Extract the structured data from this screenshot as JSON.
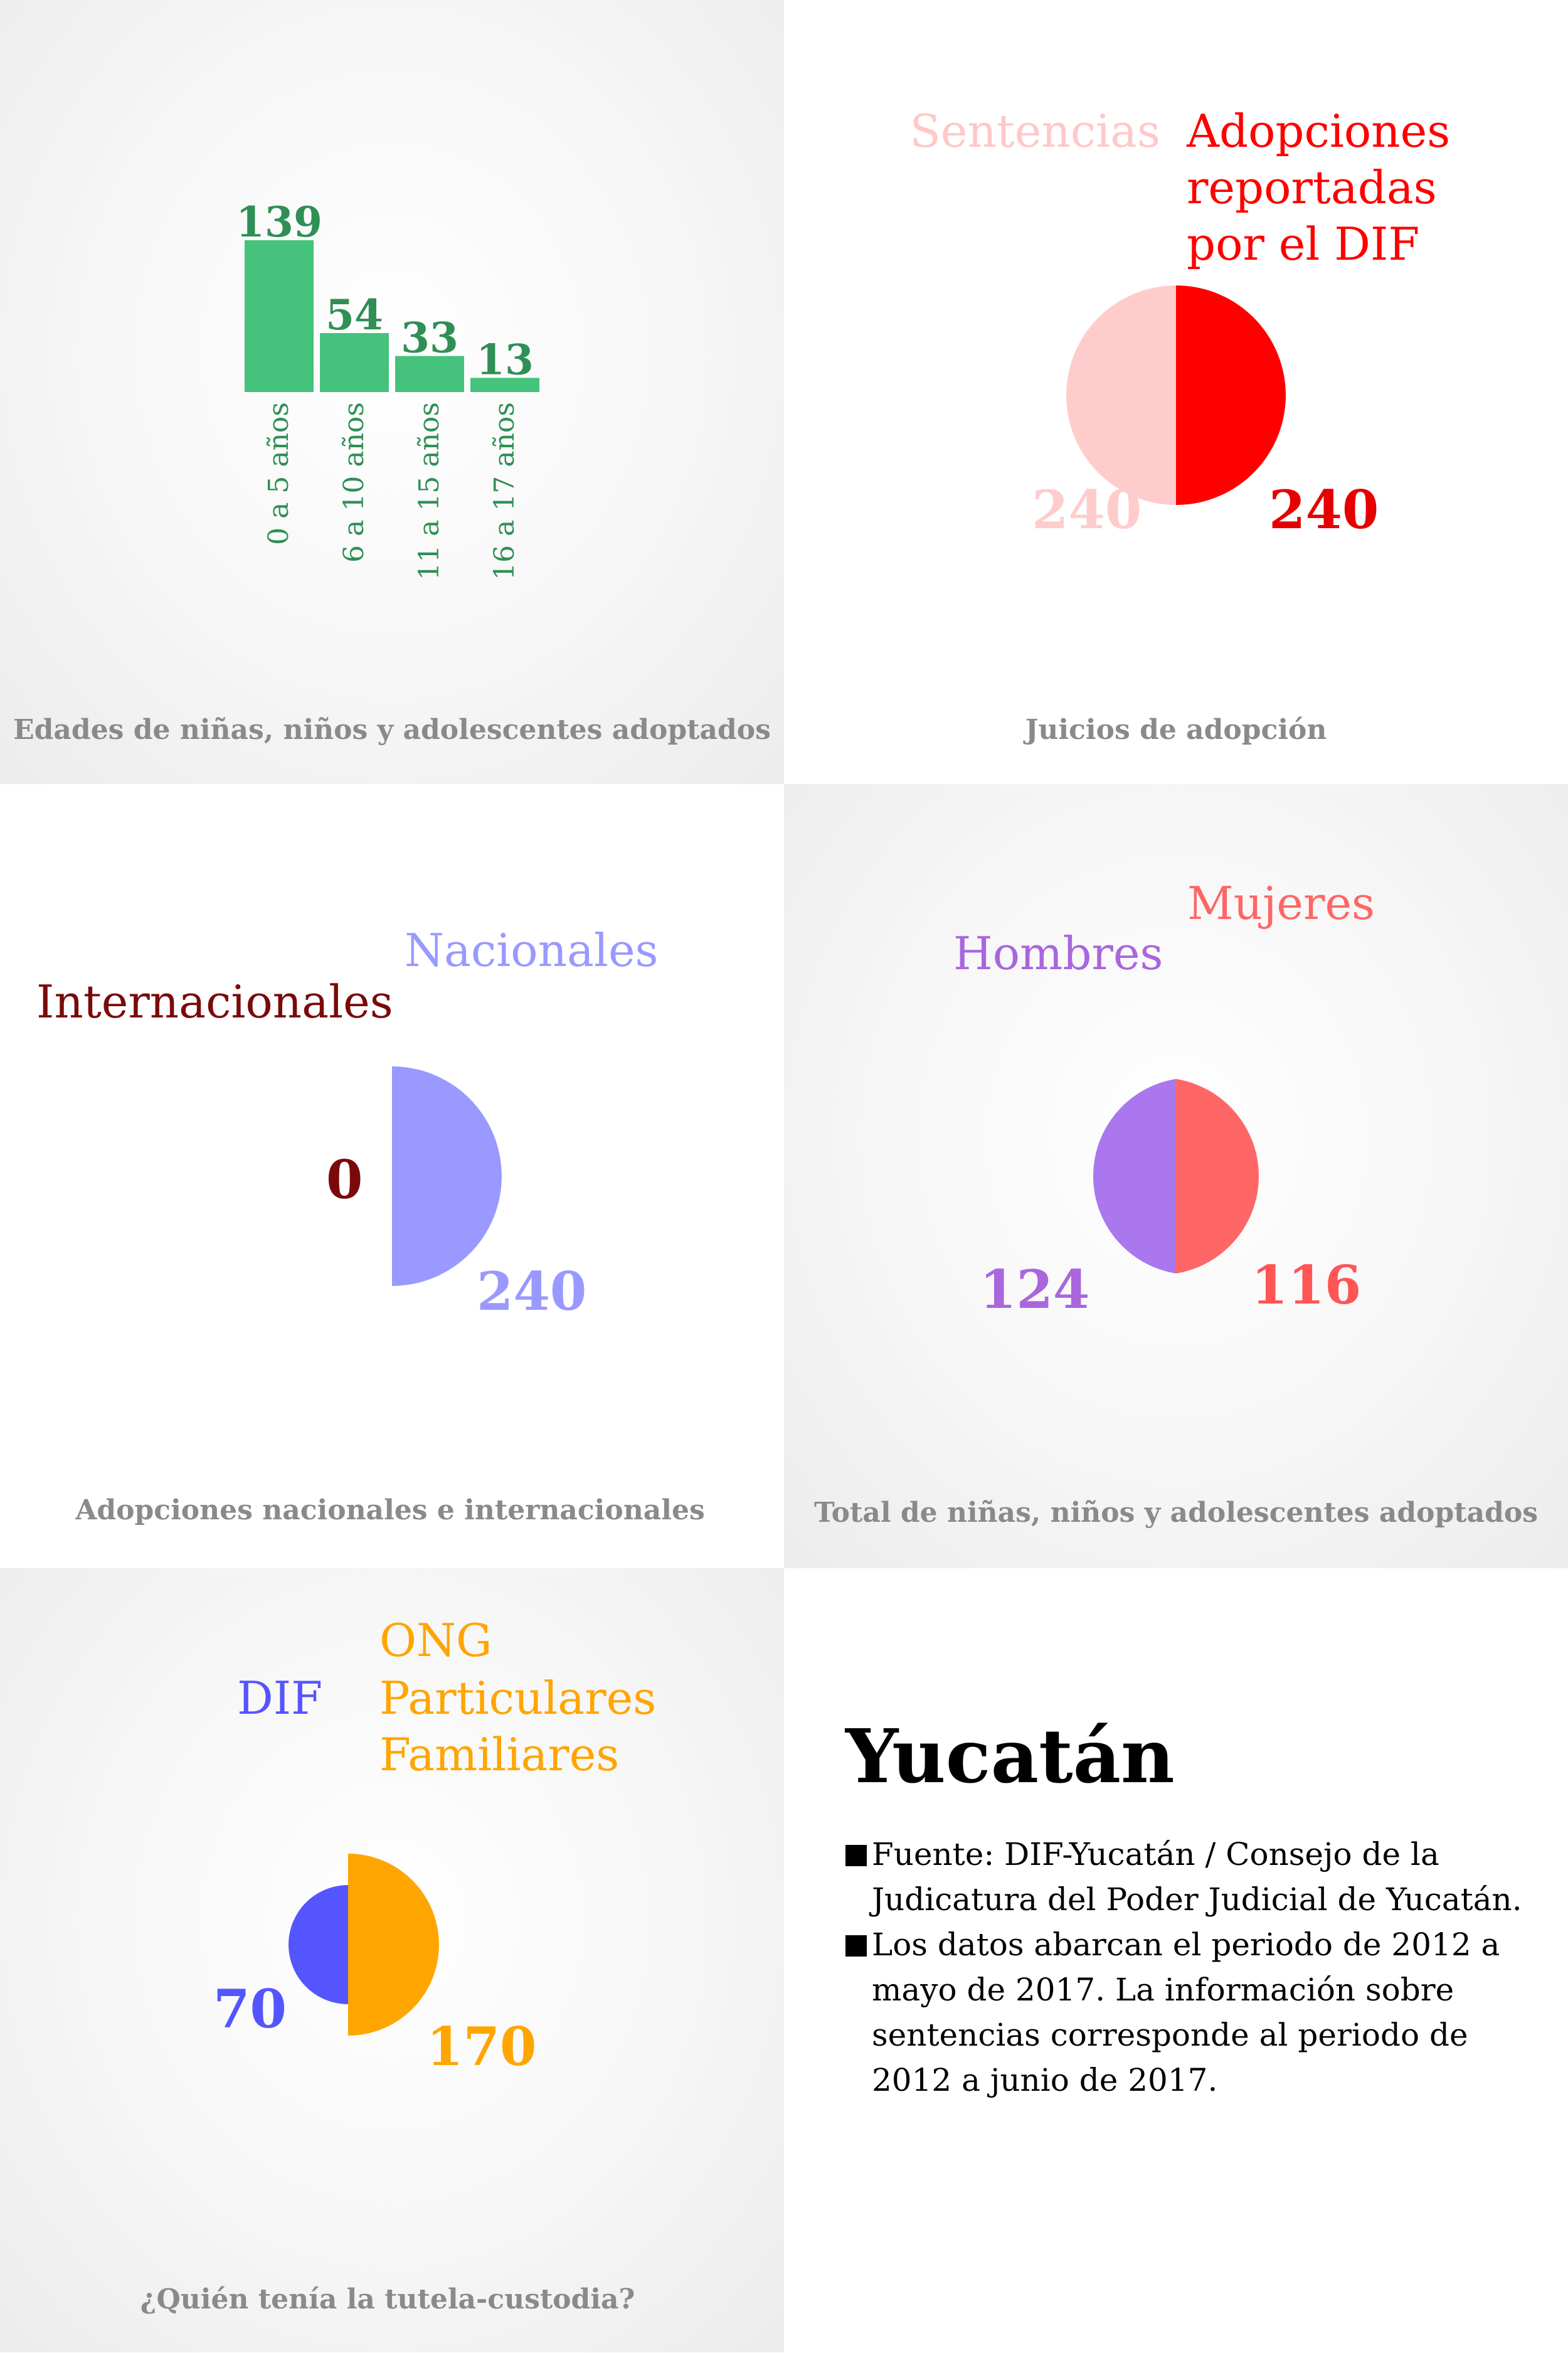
{
  "chart_data": [
    {
      "type": "bar",
      "title": "Edades de niñas, niños y adolescentes adoptados",
      "categories": [
        "0 a 5 años",
        "6 a 10 años",
        "11 a 15 años",
        "16 a 17 años"
      ],
      "values": [
        139,
        54,
        33,
        13
      ],
      "color": "#45c27b"
    },
    {
      "type": "pie",
      "title": "Juicios de adopción",
      "labels": [
        "Sentencias",
        "Adopciones reportadas por el DIF"
      ],
      "values": [
        240,
        240
      ],
      "colors": [
        "#ffcccc",
        "#ff0000"
      ]
    },
    {
      "type": "pie",
      "title": "Adopciones nacionales e internacionales",
      "labels": [
        "Internacionales",
        "Nacionales"
      ],
      "values": [
        0,
        240
      ],
      "colors": [
        "#7a0a0a",
        "#9999ff"
      ]
    },
    {
      "type": "pie",
      "title": "Total de niñas, niños y adolescentes adoptados",
      "labels": [
        "Hombres",
        "Mujeres"
      ],
      "values": [
        124,
        116
      ],
      "colors": [
        "#aa77ee",
        "#ff6666"
      ]
    },
    {
      "type": "pie",
      "title": "¿Quién tenía la tutela-custodia?",
      "labels": [
        "DIF",
        "ONG Particulares Familiares"
      ],
      "values": [
        70,
        170
      ],
      "colors": [
        "#5555ff",
        "#ffa500"
      ]
    }
  ],
  "panels": {
    "sentencias": "Sentencias",
    "dif_lines": [
      "Adopciones",
      "reportadas",
      "por el DIF"
    ],
    "tutela_lines": [
      "ONG",
      "Particulares",
      "Familiares"
    ]
  },
  "info": {
    "title": "Yucatán",
    "notes": [
      "Fuente: DIF-Yucatán / Consejo de la Judicatura del Poder Judicial de Yucatán.",
      "Los datos abarcan el periodo de 2012 a mayo de 2017. La información sobre sentencias corresponde al periodo de 2012 a junio de 2017."
    ]
  }
}
